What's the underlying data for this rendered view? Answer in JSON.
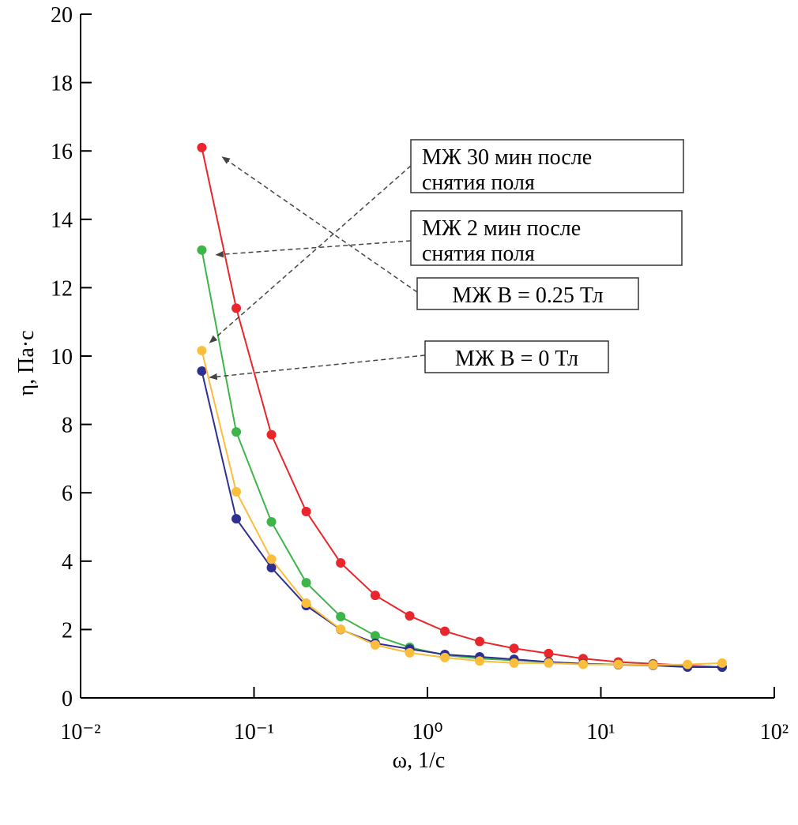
{
  "chart_data": {
    "type": "line",
    "x_label": "ω, 1/с",
    "y_label": "η, Па·с",
    "x_log": true,
    "xlim": [
      0.01,
      100
    ],
    "xticks": [
      {
        "value": 0.01,
        "label": "10⁻²"
      },
      {
        "value": 0.1,
        "label": "10⁻¹"
      },
      {
        "value": 1,
        "label": "10⁰"
      },
      {
        "value": 10,
        "label": "10¹"
      },
      {
        "value": 100,
        "label": "10²"
      }
    ],
    "ylim": [
      0,
      20
    ],
    "yticks": [
      0,
      2,
      4,
      6,
      8,
      10,
      12,
      14,
      16,
      18,
      20
    ],
    "x": [
      0.05,
      0.079,
      0.126,
      0.2,
      0.316,
      0.5,
      0.79,
      1.26,
      2,
      3.16,
      5,
      7.9,
      12.6,
      20,
      31.6,
      50
    ],
    "series": [
      {
        "color": "#e8262b",
        "values": [
          16.1,
          11.4,
          7.7,
          5.45,
          3.95,
          3.0,
          2.4,
          1.95,
          1.65,
          1.45,
          1.3,
          1.15,
          1.05,
          1.0,
          0.95,
          0.9
        ]
      },
      {
        "color": "#3db54a",
        "values": [
          13.1,
          7.78,
          5.15,
          3.37,
          2.38,
          1.82,
          1.48,
          1.25,
          1.15,
          1.1,
          1.05,
          1.0,
          0.98,
          0.97,
          0.92,
          0.9
        ]
      },
      {
        "color": "#2e2f8f",
        "values": [
          9.56,
          5.24,
          3.81,
          2.7,
          2.0,
          1.6,
          1.43,
          1.27,
          1.2,
          1.13,
          1.05,
          1.0,
          0.97,
          0.95,
          0.9,
          0.9
        ]
      },
      {
        "color": "#fbbd3c",
        "values": [
          10.16,
          6.03,
          4.06,
          2.77,
          2.01,
          1.55,
          1.32,
          1.18,
          1.08,
          1.02,
          1.02,
          0.98,
          0.98,
          0.96,
          0.98,
          1.02
        ]
      }
    ],
    "annotations": [
      {
        "text": [
          "МЖ 30 мин после",
          "снятия поля"
        ]
      },
      {
        "text": [
          "МЖ 2 мин после",
          "снятия поля"
        ]
      },
      {
        "text": [
          "МЖ B = 0.25 Тл"
        ]
      },
      {
        "text": [
          "МЖ B = 0 Тл"
        ]
      }
    ]
  }
}
